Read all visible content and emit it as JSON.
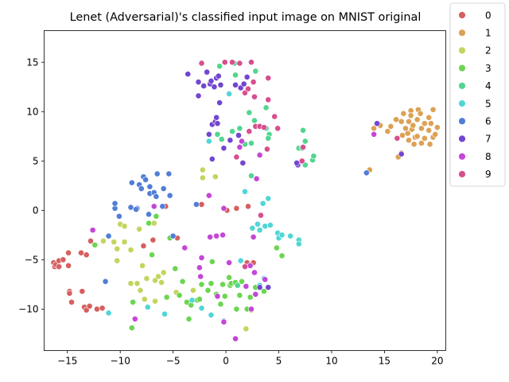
{
  "chart_data": {
    "type": "scatter",
    "title": "Lenet (Adversarial)'s classified input image on MNIST original",
    "xlabel": "",
    "ylabel": "",
    "xlim": [
      -17.2,
      20.8
    ],
    "ylim": [
      -14.2,
      18.2
    ],
    "xticks": [
      -15,
      -10,
      -5,
      0,
      5,
      10,
      15,
      20
    ],
    "yticks": [
      -10,
      -5,
      0,
      5,
      10,
      15
    ],
    "grid": false,
    "legend_position": "outside-right",
    "series": [
      {
        "name": "0",
        "color": "#d65f5f",
        "points": [
          [
            -16.3,
            -5.3
          ],
          [
            -16.2,
            -5.7
          ],
          [
            -16.1,
            -5.5
          ],
          [
            -15.8,
            -5.7
          ],
          [
            -15.8,
            -5.1
          ],
          [
            -15.4,
            -5.0
          ],
          [
            -14.9,
            -4.3
          ],
          [
            -14.9,
            -5.6
          ],
          [
            -14.8,
            -8.2
          ],
          [
            -14.8,
            -8.4
          ],
          [
            -14.6,
            -9.3
          ],
          [
            -13.7,
            -4.3
          ],
          [
            -13.6,
            -8.2
          ],
          [
            -13.4,
            -9.8
          ],
          [
            -13.2,
            -10.1
          ],
          [
            -13.2,
            -4.5
          ],
          [
            -12.9,
            -9.7
          ],
          [
            -12.8,
            -3.1
          ],
          [
            -12.2,
            -10.0
          ],
          [
            -11.7,
            -9.9
          ],
          [
            -7.8,
            -3.6
          ],
          [
            -6.9,
            -3.0
          ],
          [
            -5.7,
            0.4
          ],
          [
            -4.6,
            -2.8
          ],
          [
            -2.3,
            0.6
          ],
          [
            0.1,
            0.0
          ],
          [
            1.0,
            0.2
          ],
          [
            2.0,
            -5.3
          ],
          [
            2.1,
            0.4
          ],
          [
            2.6,
            -5.3
          ]
        ]
      },
      {
        "name": "1",
        "color": "#dca155",
        "points": [
          [
            13.6,
            4.1
          ],
          [
            14.0,
            8.3
          ],
          [
            14.6,
            8.6
          ],
          [
            15.3,
            8.0
          ],
          [
            15.6,
            8.5
          ],
          [
            16.1,
            9.2
          ],
          [
            16.3,
            5.4
          ],
          [
            16.6,
            5.8
          ],
          [
            16.6,
            9.0
          ],
          [
            16.8,
            9.8
          ],
          [
            17.0,
            8.3
          ],
          [
            17.2,
            7.8
          ],
          [
            17.3,
            9.0
          ],
          [
            17.3,
            7.1
          ],
          [
            17.5,
            10.1
          ],
          [
            17.5,
            9.6
          ],
          [
            17.6,
            8.2
          ],
          [
            17.7,
            8.6
          ],
          [
            17.8,
            6.7
          ],
          [
            17.9,
            7.4
          ],
          [
            18.1,
            9.2
          ],
          [
            18.2,
            10.2
          ],
          [
            18.4,
            9.8
          ],
          [
            18.5,
            8.3
          ],
          [
            18.5,
            6.8
          ],
          [
            18.8,
            7.3
          ],
          [
            18.8,
            8.8
          ],
          [
            19.2,
            9.4
          ],
          [
            19.2,
            8.1
          ],
          [
            19.3,
            6.7
          ],
          [
            19.4,
            8.8
          ],
          [
            19.6,
            7.4
          ],
          [
            19.6,
            10.2
          ],
          [
            19.8,
            7.7
          ],
          [
            20.0,
            8.4
          ],
          [
            18.1,
            7.5
          ],
          [
            16.7,
            7.6
          ]
        ]
      },
      {
        "name": "2",
        "color": "#c4d45f",
        "points": [
          [
            -11.6,
            -3.1
          ],
          [
            -10.6,
            -3.2
          ],
          [
            -10.3,
            -3.9
          ],
          [
            -10.3,
            -5.1
          ],
          [
            -10.0,
            -1.4
          ],
          [
            -9.6,
            -3.2
          ],
          [
            -9.6,
            -1.6
          ],
          [
            -9.0,
            -4.0
          ],
          [
            -9.0,
            -7.4
          ],
          [
            -8.4,
            -7.4
          ],
          [
            -8.2,
            -1.9
          ],
          [
            -8.1,
            -8.1
          ],
          [
            -7.9,
            -5.6
          ],
          [
            -7.7,
            -9.0
          ],
          [
            -7.5,
            -6.9
          ],
          [
            -6.8,
            -1.3
          ],
          [
            -6.7,
            -7.1
          ],
          [
            -6.7,
            -9.2
          ],
          [
            -6.4,
            -6.7
          ],
          [
            -6.1,
            -7.3
          ],
          [
            -5.9,
            -6.3
          ],
          [
            -4.7,
            -8.3
          ],
          [
            -3.1,
            -8.1
          ],
          [
            -2.2,
            3.3
          ],
          [
            -2.2,
            4.1
          ],
          [
            -1.0,
            3.4
          ],
          [
            1.9,
            -12.0
          ],
          [
            2.4,
            -10.1
          ]
        ]
      },
      {
        "name": "3",
        "color": "#6bd651",
        "points": [
          [
            -12.4,
            -3.5
          ],
          [
            -8.9,
            -11.9
          ],
          [
            -8.8,
            -9.3
          ],
          [
            -7.3,
            -1.3
          ],
          [
            -6.6,
            -0.6
          ],
          [
            -5.6,
            -8.8
          ],
          [
            -4.4,
            -8.6
          ],
          [
            -4.1,
            -7.2
          ],
          [
            -3.7,
            -9.3
          ],
          [
            -3.3,
            -9.6
          ],
          [
            -2.7,
            -9.1
          ],
          [
            -2.5,
            -9.0
          ],
          [
            -2.3,
            -7.5
          ],
          [
            -1.7,
            -8.1
          ],
          [
            -1.4,
            -7.4
          ],
          [
            -1.3,
            -5.2
          ],
          [
            -0.5,
            -9.5
          ],
          [
            -0.3,
            -7.5
          ],
          [
            -0.1,
            -8.7
          ],
          [
            0.4,
            -7.6
          ],
          [
            0.5,
            -7.4
          ],
          [
            0.9,
            -7.3
          ],
          [
            1.0,
            -10.0
          ],
          [
            1.3,
            -8.6
          ],
          [
            2.0,
            -10.0
          ],
          [
            2.3,
            -8.8
          ],
          [
            4.8,
            -3.8
          ],
          [
            5.3,
            -4.6
          ],
          [
            -3.5,
            -11.0
          ],
          [
            -0.9,
            -8.5
          ],
          [
            0.3,
            -6.8
          ],
          [
            1.5,
            -7.2
          ],
          [
            2.8,
            -7.8
          ],
          [
            -4.8,
            -5.9
          ],
          [
            -7.0,
            -4.5
          ],
          [
            3.6,
            -8.2
          ],
          [
            -5.3,
            -2.8
          ]
        ]
      },
      {
        "name": "4",
        "color": "#51d690",
        "points": [
          [
            0.8,
            14.9
          ],
          [
            0.9,
            13.7
          ],
          [
            1.3,
            8.3
          ],
          [
            1.8,
            6.7
          ],
          [
            2.2,
            9.9
          ],
          [
            2.4,
            6.8
          ],
          [
            2.7,
            9.1
          ],
          [
            3.8,
            8.3
          ],
          [
            4.1,
            7.7
          ],
          [
            6.9,
            6.3
          ],
          [
            7.2,
            6.3
          ],
          [
            7.3,
            8.1
          ],
          [
            7.5,
            7.0
          ],
          [
            8.2,
            5.1
          ],
          [
            8.3,
            5.5
          ],
          [
            7.5,
            4.6
          ],
          [
            3.8,
            10.4
          ],
          [
            2.8,
            14.1
          ],
          [
            1.9,
            -7.7
          ],
          [
            1.1,
            -7.6
          ],
          [
            -0.6,
            14.6
          ],
          [
            -0.8,
            7.7
          ],
          [
            0.6,
            8.0
          ],
          [
            2.4,
            3.5
          ],
          [
            -0.4,
            7.2
          ],
          [
            4.0,
            7.3
          ]
        ]
      },
      {
        "name": "5",
        "color": "#51d6d6",
        "points": [
          [
            -11.1,
            -10.4
          ],
          [
            -7.4,
            -9.8
          ],
          [
            -5.8,
            -10.5
          ],
          [
            -3.2,
            -9.1
          ],
          [
            -2.3,
            -9.9
          ],
          [
            -1.6,
            7.0
          ],
          [
            -1.4,
            -10.6
          ],
          [
            -0.2,
            -11.2
          ],
          [
            0.3,
            11.8
          ],
          [
            1.4,
            -5.1
          ],
          [
            1.8,
            1.9
          ],
          [
            2.5,
            -1.8
          ],
          [
            3.0,
            -1.4
          ],
          [
            3.2,
            -2.0
          ],
          [
            3.2,
            -7.6
          ],
          [
            3.5,
            0.7
          ],
          [
            3.7,
            -1.6
          ],
          [
            4.0,
            1.2
          ],
          [
            4.2,
            -1.5
          ],
          [
            4.9,
            -2.3
          ],
          [
            5.0,
            -2.8
          ],
          [
            5.3,
            -2.5
          ],
          [
            6.1,
            -2.6
          ],
          [
            6.9,
            -3.0
          ],
          [
            6.9,
            -3.4
          ],
          [
            3.6,
            -6.9
          ]
        ]
      },
      {
        "name": "6",
        "color": "#517ed6",
        "points": [
          [
            -11.4,
            -7.2
          ],
          [
            -11.1,
            -2.6
          ],
          [
            -10.5,
            0.2
          ],
          [
            -10.5,
            0.7
          ],
          [
            -10.1,
            -0.6
          ],
          [
            -9.0,
            0.3
          ],
          [
            -8.9,
            2.8
          ],
          [
            -8.4,
            0.2
          ],
          [
            -8.2,
            2.6
          ],
          [
            -8.0,
            2.2
          ],
          [
            -7.8,
            3.4
          ],
          [
            -7.6,
            3.1
          ],
          [
            -7.3,
            -0.4
          ],
          [
            -7.2,
            2.4
          ],
          [
            -7.2,
            1.7
          ],
          [
            -6.8,
            1.8
          ],
          [
            -6.6,
            1.4
          ],
          [
            -6.5,
            3.7
          ],
          [
            -6.0,
            0.4
          ],
          [
            -5.9,
            2.2
          ],
          [
            -5.4,
            3.7
          ],
          [
            -5.3,
            1.5
          ],
          [
            -5.0,
            -2.6
          ],
          [
            -2.8,
            0.6
          ],
          [
            13.3,
            3.8
          ],
          [
            -8.5,
            0.1
          ]
        ]
      },
      {
        "name": "7",
        "color": "#7346d0",
        "points": [
          [
            -3.6,
            13.8
          ],
          [
            -2.6,
            13.0
          ],
          [
            -2.6,
            11.6
          ],
          [
            -2.1,
            12.6
          ],
          [
            -1.8,
            14.0
          ],
          [
            -1.6,
            7.7
          ],
          [
            -1.5,
            12.8
          ],
          [
            -1.4,
            13.1
          ],
          [
            -1.3,
            5.2
          ],
          [
            -1.3,
            8.7
          ],
          [
            -1.1,
            12.5
          ],
          [
            -1.0,
            9.0
          ],
          [
            -0.9,
            9.4
          ],
          [
            -0.9,
            13.4
          ],
          [
            -0.8,
            8.8
          ],
          [
            -0.6,
            10.9
          ],
          [
            -0.5,
            12.7
          ],
          [
            -0.2,
            6.3
          ],
          [
            0.4,
            7.1
          ],
          [
            0.9,
            12.7
          ],
          [
            1.2,
            7.6
          ],
          [
            1.4,
            12.4
          ],
          [
            1.6,
            4.8
          ],
          [
            2.0,
            13.5
          ],
          [
            3.2,
            -7.8
          ],
          [
            4.0,
            -7.8
          ],
          [
            6.8,
            4.6
          ],
          [
            6.7,
            4.8
          ],
          [
            14.3,
            8.8
          ],
          [
            16.6,
            5.7
          ],
          [
            -0.7,
            13.6
          ],
          [
            1.7,
            12.8
          ]
        ]
      },
      {
        "name": "8",
        "color": "#c546d6",
        "points": [
          [
            -12.6,
            -2.0
          ],
          [
            -8.6,
            -11.0
          ],
          [
            -6.8,
            0.4
          ],
          [
            -3.9,
            -3.8
          ],
          [
            -2.3,
            -4.8
          ],
          [
            -2.5,
            -5.8
          ],
          [
            -2.4,
            -6.7
          ],
          [
            -1.5,
            -2.7
          ],
          [
            -1.6,
            1.5
          ],
          [
            -0.9,
            -2.6
          ],
          [
            -0.3,
            -2.5
          ],
          [
            -0.2,
            -11.3
          ],
          [
            -0.2,
            0.2
          ],
          [
            0.3,
            -5.3
          ],
          [
            0.9,
            -13.0
          ],
          [
            1.3,
            6.4
          ],
          [
            1.5,
            7.0
          ],
          [
            1.9,
            -7.7
          ],
          [
            2.4,
            -10.0
          ],
          [
            2.6,
            -2.7
          ],
          [
            2.7,
            -6.3
          ],
          [
            2.8,
            -8.5
          ],
          [
            2.9,
            3.2
          ],
          [
            3.2,
            5.6
          ],
          [
            3.7,
            -7.0
          ],
          [
            7.2,
            5.0
          ],
          [
            14.0,
            7.7
          ],
          [
            -0.8,
            -8.7
          ],
          [
            2.3,
            -5.6
          ]
        ]
      },
      {
        "name": "9",
        "color": "#d64f8f",
        "points": [
          [
            -2.3,
            14.9
          ],
          [
            0.6,
            15.0
          ],
          [
            1.3,
            14.9
          ],
          [
            1.8,
            11.9
          ],
          [
            2.1,
            12.3
          ],
          [
            2.4,
            15.0
          ],
          [
            2.6,
            13.0
          ],
          [
            2.7,
            11.5
          ],
          [
            2.8,
            8.5
          ],
          [
            3.2,
            8.5
          ],
          [
            3.3,
            -0.5
          ],
          [
            3.6,
            8.4
          ],
          [
            3.9,
            6.2
          ],
          [
            4.0,
            11.2
          ],
          [
            4.6,
            9.5
          ],
          [
            4.9,
            8.3
          ],
          [
            4.0,
            13.4
          ],
          [
            2.2,
            8.0
          ],
          [
            7.2,
            5.0
          ],
          [
            7.3,
            6.4
          ],
          [
            16.2,
            7.3
          ],
          [
            1.0,
            5.4
          ],
          [
            1.8,
            -5.7
          ],
          [
            -0.1,
            15.0
          ]
        ]
      }
    ]
  }
}
